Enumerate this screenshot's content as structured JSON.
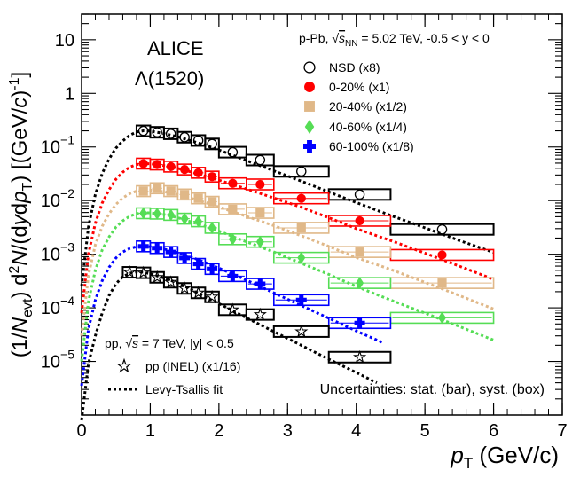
{
  "chart_data": {
    "type": "scatter",
    "log_y": true,
    "xlim": [
      0,
      7
    ],
    "ylim": [
      1e-06,
      30
    ],
    "x_ticks": [
      0,
      1,
      2,
      3,
      4,
      5,
      6,
      7
    ],
    "y_ticks": [
      {
        "value": 1e-05,
        "base": "10",
        "exp": "−5"
      },
      {
        "value": 0.0001,
        "base": "10",
        "exp": "−4"
      },
      {
        "value": 0.001,
        "base": "10",
        "exp": "−3"
      },
      {
        "value": 0.01,
        "base": "10",
        "exp": "−2"
      },
      {
        "value": 0.1,
        "base": "10",
        "exp": "−1"
      },
      {
        "value": 1,
        "base": "1",
        "exp": ""
      },
      {
        "value": 10,
        "base": "10",
        "exp": ""
      }
    ],
    "xlabel": {
      "main": "p",
      "sub": "T",
      "rest": " (GeV/c)"
    },
    "ylabel": "(1/Nevt) d²N/(dydpT) [(GeV/c)⁻¹]",
    "title_line1": "ALICE",
    "title_line2": "Λ(1520)",
    "system_label": {
      "part1": "p-Pb, ",
      "sqrt": "s",
      "sub": "NN",
      "part2": " = 5.02 TeV, -0.5 < y < 0"
    },
    "pp_label": {
      "part1": "pp, ",
      "sqrt": "s",
      "part2": " = 7 TeV, |y| < 0.5"
    },
    "uncertainty_note": "Uncertainties: stat. (bar), syst. (box)",
    "fit_label": "Levy-Tsallis fit",
    "bins": [
      [
        0.8,
        1.0
      ],
      [
        1.0,
        1.2
      ],
      [
        1.2,
        1.4
      ],
      [
        1.4,
        1.6
      ],
      [
        1.6,
        1.8
      ],
      [
        1.8,
        2.0
      ],
      [
        2.0,
        2.4
      ],
      [
        2.4,
        2.8
      ],
      [
        2.8,
        3.6
      ],
      [
        3.6,
        4.5
      ],
      [
        4.5,
        6.0
      ]
    ],
    "series": [
      {
        "name": "NSD (x8)",
        "color": "#000000",
        "marker": "open-circle",
        "x": [
          0.9,
          1.1,
          1.3,
          1.5,
          1.7,
          1.9,
          2.2,
          2.6,
          3.2,
          4.05,
          5.25
        ],
        "values": [
          0.2,
          0.188,
          0.176,
          0.152,
          0.132,
          0.114,
          0.08,
          0.057,
          0.035,
          0.013,
          0.0029
        ],
        "fit": [
          [
            0.0,
            0.00025
          ],
          [
            0.1,
            0.0032
          ],
          [
            0.2,
            0.013
          ],
          [
            0.3,
            0.032
          ],
          [
            0.4,
            0.06
          ],
          [
            0.5,
            0.095
          ],
          [
            0.6,
            0.13
          ],
          [
            0.7,
            0.165
          ],
          [
            0.8,
            0.19
          ],
          [
            0.9,
            0.2
          ],
          [
            1.0,
            0.198
          ],
          [
            1.2,
            0.178
          ],
          [
            1.4,
            0.155
          ],
          [
            1.6,
            0.13
          ],
          [
            1.8,
            0.108
          ],
          [
            2.0,
            0.088
          ],
          [
            2.4,
            0.056
          ],
          [
            2.8,
            0.036
          ],
          [
            3.2,
            0.023
          ],
          [
            3.6,
            0.0145
          ],
          [
            4.0,
            0.0092
          ],
          [
            4.5,
            0.0053
          ],
          [
            5.0,
            0.0031
          ],
          [
            5.5,
            0.0018
          ],
          [
            6.0,
            0.00108
          ]
        ]
      },
      {
        "name": "0-20% (x1)",
        "color": "#ff0000",
        "marker": "filled-circle",
        "x": [
          0.9,
          1.1,
          1.3,
          1.5,
          1.7,
          1.9,
          2.2,
          2.6,
          3.2,
          4.05,
          5.25
        ],
        "values": [
          0.049,
          0.047,
          0.043,
          0.038,
          0.033,
          0.028,
          0.021,
          0.02,
          0.011,
          0.0042,
          0.00097
        ],
        "fit": [
          [
            0.0,
            8e-05
          ],
          [
            0.1,
            0.001
          ],
          [
            0.2,
            0.0038
          ],
          [
            0.3,
            0.009
          ],
          [
            0.4,
            0.016
          ],
          [
            0.5,
            0.025
          ],
          [
            0.6,
            0.034
          ],
          [
            0.7,
            0.042
          ],
          [
            0.8,
            0.047
          ],
          [
            0.9,
            0.049
          ],
          [
            1.0,
            0.0485
          ],
          [
            1.2,
            0.045
          ],
          [
            1.4,
            0.04
          ],
          [
            1.6,
            0.034
          ],
          [
            1.8,
            0.0285
          ],
          [
            2.0,
            0.024
          ],
          [
            2.4,
            0.0165
          ],
          [
            2.8,
            0.0112
          ],
          [
            3.2,
            0.0075
          ],
          [
            3.6,
            0.0048
          ],
          [
            4.0,
            0.003
          ],
          [
            4.5,
            0.0018
          ],
          [
            5.0,
            0.00105
          ],
          [
            5.5,
            0.0006
          ],
          [
            6.0,
            0.00034
          ]
        ]
      },
      {
        "name": "20-40% (x1/2)",
        "color": "#e0b888",
        "marker": "filled-square",
        "x": [
          0.9,
          1.1,
          1.3,
          1.5,
          1.7,
          1.9,
          2.2,
          2.6,
          3.2,
          4.05,
          5.25
        ],
        "values": [
          0.015,
          0.017,
          0.015,
          0.013,
          0.011,
          0.0095,
          0.0069,
          0.0059,
          0.0031,
          0.0011,
          0.00029
        ],
        "fit": [
          [
            0.0,
            3e-05
          ],
          [
            0.1,
            0.0004
          ],
          [
            0.2,
            0.0015
          ],
          [
            0.3,
            0.0033
          ],
          [
            0.4,
            0.0057
          ],
          [
            0.5,
            0.0085
          ],
          [
            0.6,
            0.0112
          ],
          [
            0.7,
            0.0135
          ],
          [
            0.8,
            0.015
          ],
          [
            0.9,
            0.0157
          ],
          [
            1.0,
            0.0157
          ],
          [
            1.2,
            0.0147
          ],
          [
            1.4,
            0.013
          ],
          [
            1.6,
            0.011
          ],
          [
            1.8,
            0.0092
          ],
          [
            2.0,
            0.0076
          ],
          [
            2.4,
            0.0051
          ],
          [
            2.8,
            0.0034
          ],
          [
            3.2,
            0.0022
          ],
          [
            3.6,
            0.0014
          ],
          [
            4.0,
            0.00087
          ],
          [
            4.5,
            0.00052
          ],
          [
            5.0,
            0.0003
          ],
          [
            5.5,
            0.00017
          ],
          [
            6.0,
            9.5e-05
          ]
        ]
      },
      {
        "name": "40-60% (x1/4)",
        "color": "#55dd55",
        "marker": "filled-diamond",
        "x": [
          0.9,
          1.1,
          1.3,
          1.5,
          1.7,
          1.9,
          2.2,
          2.6,
          3.2,
          4.05,
          5.25
        ],
        "values": [
          0.0058,
          0.0057,
          0.0054,
          0.0046,
          0.0041,
          0.0031,
          0.0019,
          0.0017,
          0.00086,
          0.00029,
          6.5e-05
        ],
        "fit": [
          [
            0.0,
            1e-05
          ],
          [
            0.1,
            0.00013
          ],
          [
            0.2,
            0.0005
          ],
          [
            0.3,
            0.0012
          ],
          [
            0.4,
            0.0021
          ],
          [
            0.5,
            0.0032
          ],
          [
            0.6,
            0.0042
          ],
          [
            0.7,
            0.0051
          ],
          [
            0.8,
            0.0057
          ],
          [
            0.9,
            0.0059
          ],
          [
            1.0,
            0.0059
          ],
          [
            1.2,
            0.0055
          ],
          [
            1.4,
            0.0048
          ],
          [
            1.6,
            0.004
          ],
          [
            1.8,
            0.0033
          ],
          [
            2.0,
            0.0027
          ],
          [
            2.4,
            0.0017
          ],
          [
            2.8,
            0.0011
          ],
          [
            3.2,
            0.00068
          ],
          [
            3.6,
            0.00042
          ],
          [
            4.0,
            0.00025
          ],
          [
            4.5,
            0.00014
          ],
          [
            5.0,
            8e-05
          ],
          [
            5.5,
            4.5e-05
          ],
          [
            6.0,
            2.5e-05
          ]
        ]
      },
      {
        "name": "60-100% (x1/8)",
        "color": "#0000ff",
        "marker": "filled-cross",
        "x": [
          0.9,
          1.1,
          1.3,
          1.5,
          1.7,
          1.9,
          2.2,
          2.6,
          3.2,
          4.05
        ],
        "values": [
          0.0014,
          0.0013,
          0.0011,
          0.00085,
          0.00066,
          0.00053,
          0.00039,
          0.00028,
          0.00014,
          5.2e-05
        ],
        "fit": [
          [
            0.0,
            3.5e-06
          ],
          [
            0.1,
            4e-05
          ],
          [
            0.2,
            0.00014
          ],
          [
            0.3,
            0.00032
          ],
          [
            0.4,
            0.00057
          ],
          [
            0.5,
            0.00085
          ],
          [
            0.6,
            0.0011
          ],
          [
            0.7,
            0.00128
          ],
          [
            0.8,
            0.00138
          ],
          [
            0.9,
            0.0014
          ],
          [
            1.0,
            0.00138
          ],
          [
            1.2,
            0.00125
          ],
          [
            1.4,
            0.00107
          ],
          [
            1.6,
            0.00088
          ],
          [
            1.8,
            0.0007
          ],
          [
            2.0,
            0.00055
          ],
          [
            2.4,
            0.00033
          ],
          [
            2.8,
            0.00019
          ],
          [
            3.2,
            0.00011
          ],
          [
            3.6,
            6.4e-05
          ],
          [
            4.0,
            3.7e-05
          ],
          [
            4.4,
            2.2e-05
          ]
        ]
      },
      {
        "name": "pp (INEL) (x1/16)",
        "color": "#000000",
        "marker": "open-star",
        "x": [
          0.7,
          0.9,
          1.1,
          1.3,
          1.5,
          1.7,
          1.9,
          2.2,
          2.6,
          3.2,
          4.05
        ],
        "values": [
          0.00046,
          0.00045,
          0.00037,
          0.0003,
          0.00023,
          0.00019,
          0.00016,
          9.2e-05,
          7.5e-05,
          3.6e-05,
          1.2e-05
        ],
        "fit": [
          [
            0.0,
            8e-07
          ],
          [
            0.1,
            9e-06
          ],
          [
            0.2,
            3e-05
          ],
          [
            0.3,
            8e-05
          ],
          [
            0.4,
            0.00017
          ],
          [
            0.5,
            0.00028
          ],
          [
            0.6,
            0.00038
          ],
          [
            0.7,
            0.00044
          ],
          [
            0.8,
            0.00047
          ],
          [
            0.9,
            0.00046
          ],
          [
            1.0,
            0.00043
          ],
          [
            1.2,
            0.00036
          ],
          [
            1.4,
            0.00029
          ],
          [
            1.6,
            0.00022
          ],
          [
            1.8,
            0.00016
          ],
          [
            2.0,
            0.00012
          ],
          [
            2.4,
            6.5e-05
          ],
          [
            2.8,
            3.6e-05
          ],
          [
            3.2,
            2e-05
          ],
          [
            3.6,
            1.1e-05
          ],
          [
            4.0,
            6.2e-06
          ],
          [
            4.3,
            4e-06
          ]
        ]
      }
    ]
  }
}
